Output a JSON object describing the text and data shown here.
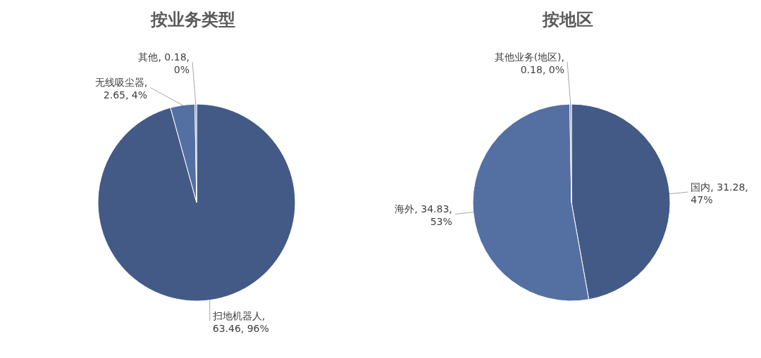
{
  "chart_data": [
    {
      "type": "pie",
      "title": "按业务类型",
      "categories": [
        "扫地机器人",
        "无线吸尘器",
        "其他"
      ],
      "values": [
        63.46,
        2.65,
        0.18
      ],
      "colors": [
        "#435a86",
        "#5470a3",
        "#6d8bc0"
      ],
      "value_labels": [
        ", 63.46, 96%",
        ", 2.65, 4%",
        ", 0.18, 0%"
      ]
    },
    {
      "type": "pie",
      "title": "按地区",
      "categories": [
        "国内",
        "海外",
        "其他业务(地区)"
      ],
      "values": [
        31.28,
        34.83,
        0.18
      ],
      "colors": [
        "#435a86",
        "#5470a3",
        "#6f8cc1"
      ],
      "value_labels": [
        ", 31.28, 47%",
        ", 34.83, 53%",
        ", 0.18, 0%"
      ]
    }
  ]
}
